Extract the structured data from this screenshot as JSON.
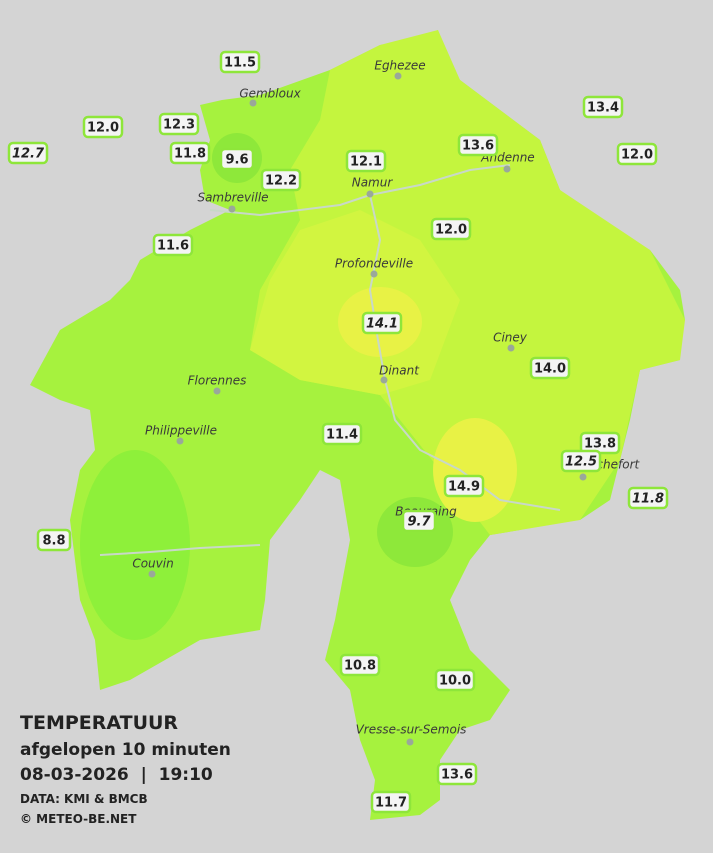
{
  "stations": [
    {
      "label": "11.5"
    },
    {
      "label": "12.0"
    },
    {
      "label": "12.3"
    },
    {
      "label": "12.7",
      "italic": true
    },
    {
      "label": "11.8"
    },
    {
      "label": "9.6"
    },
    {
      "label": "12.2"
    },
    {
      "label": "12.1"
    },
    {
      "label": "13.6"
    },
    {
      "label": "13.4"
    },
    {
      "label": "12.0"
    },
    {
      "label": "11.6"
    },
    {
      "label": "12.0"
    },
    {
      "label": "14.1",
      "italic": true
    },
    {
      "label": "14.0"
    },
    {
      "label": "11.4"
    },
    {
      "label": "13.8"
    },
    {
      "label": "12.5",
      "italic": true
    },
    {
      "label": "11.8",
      "italic": true
    },
    {
      "label": "14.9"
    },
    {
      "label": "9.7",
      "italic": true
    },
    {
      "label": "8.8"
    },
    {
      "label": "10.8"
    },
    {
      "label": "10.0"
    },
    {
      "label": "13.6"
    },
    {
      "label": "11.7"
    }
  ],
  "towns": [
    "Eghezee",
    "Gembloux",
    "Andenne",
    "Namur",
    "Sambreville",
    "Profondeville",
    "Ciney",
    "Dinant",
    "Florennes",
    "Philippeville",
    "Beauraing",
    "Rochefort",
    "Couvin",
    "Vresse-sur-Semois"
  ],
  "legend": {
    "title": "TEMPERATUUR",
    "subtitle": "afgelopen 10 minuten",
    "datetime": "08-03-2026  |  19:10",
    "source": "DATA: KMI & BMCB",
    "copyright": "© METEO-BE.NET"
  }
}
